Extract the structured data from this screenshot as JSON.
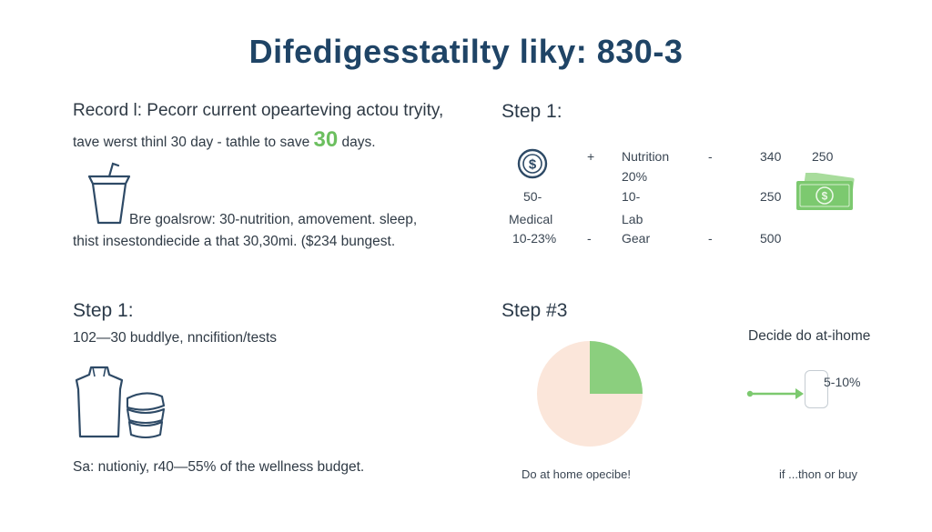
{
  "title": "Difedigesstatilty liky: 830-3",
  "q1": {
    "heading": "Record l: Pecorr current opearteving actou tryity,",
    "line2_pre": "tave werst thinl 30 day - tathle to save",
    "highlight": "30",
    "line2_post": "days.",
    "icon": "cup-icon",
    "note_line1": "Bre goalsrow: 30-nutrition, amovement. sleep,",
    "note_line2": "thist insestondiecide a that 30,30mi. ($234 bungest."
  },
  "q2": {
    "heading": "Step 1:",
    "icon_coin": "dollar-coin-icon",
    "icon_bill": "money-bill-icon",
    "col1": [
      "50-",
      "Medical",
      "10-23%"
    ],
    "col2": [
      "+",
      "-"
    ],
    "col3": [
      "Nutrition",
      "20%",
      "10-",
      "Lab",
      "Gear"
    ],
    "col4": [
      "-",
      "-"
    ],
    "col5": [
      "340",
      "250",
      "500"
    ],
    "col6": [
      "250"
    ],
    "accent": "#7cc96f"
  },
  "q3": {
    "heading": "Step 1:",
    "subtext": "102—30 buddlye, nncifition/tests",
    "icon_bottle": "bottle-icon",
    "icon_containers": "containers-icon",
    "note": "Sa: nutioniy, r40—55% of the wellness budget."
  },
  "q4": {
    "heading": "Step #3",
    "pie": {
      "type": "pie",
      "slices": [
        {
          "value": 25,
          "color": "#8bcf7e"
        },
        {
          "value": 75,
          "color": "#fbe6da"
        }
      ]
    },
    "pie_caption": "Do at home opecibe!",
    "right_label": "Decide do at-ihome",
    "box_text": "5-10%",
    "bottom_caption": "if ...thon or buy",
    "icon_arrow": "arrow-right-icon"
  }
}
